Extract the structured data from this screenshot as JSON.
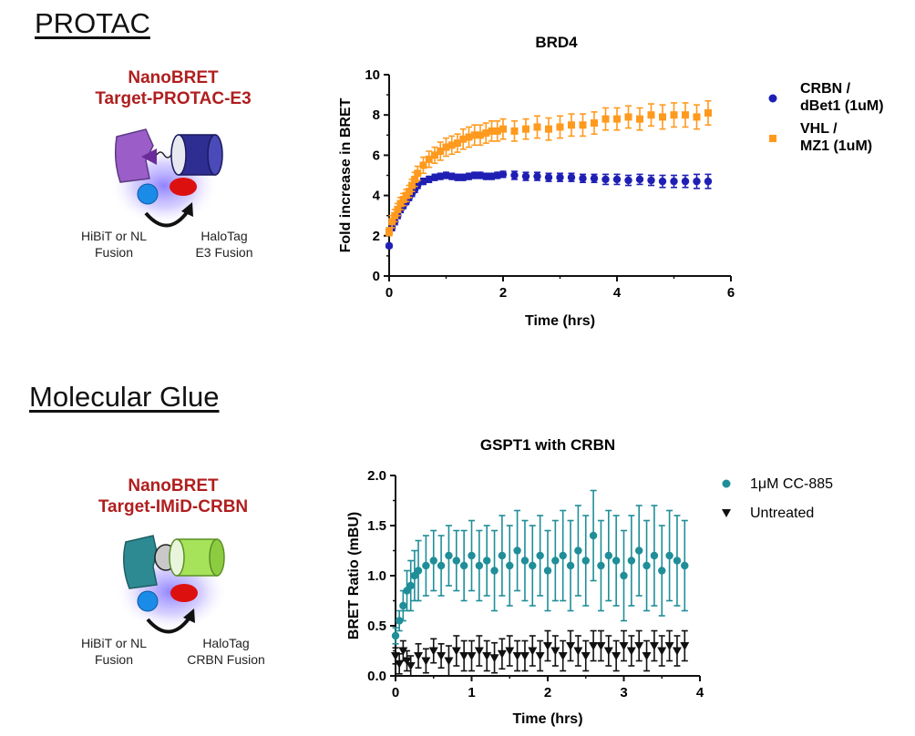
{
  "protac": {
    "section_title": "PROTAC",
    "assay_title_line1": "NanoBRET",
    "assay_title_line2": "Target-PROTAC-E3",
    "left_caption_line1": "HiBiT or NL",
    "left_caption_line2": "Fusion",
    "right_caption_line1": "HaloTag",
    "right_caption_line2": "E3 Fusion"
  },
  "glue": {
    "section_title": "Molecular Glue",
    "assay_title_line1": "NanoBRET",
    "assay_title_line2": "Target-IMiD-CRBN",
    "left_caption_line1": "HiBiT or NL",
    "left_caption_line2": "Fusion",
    "right_caption_line1": "HaloTag",
    "right_caption_line2": "CRBN Fusion"
  },
  "colors": {
    "blue": "#1f1fb4",
    "orange": "#ff9a1e",
    "teal": "#1f8e98",
    "black": "#111111",
    "title_red": "#b01e1e"
  },
  "chart_data": [
    {
      "type": "scatter",
      "title": "BRD4",
      "xlabel": "Time (hrs)",
      "ylabel": "Fold increase in BRET",
      "xlim": [
        0,
        6
      ],
      "ylim": [
        0,
        10
      ],
      "xticks": [
        "0",
        "2",
        "4",
        "6"
      ],
      "yticks": [
        "0",
        "2",
        "4",
        "6",
        "8",
        "10"
      ],
      "legend_position": "right",
      "series": [
        {
          "name": "CRBN / dBet1 (1uM)",
          "legend_line1": "CRBN /",
          "legend_line2": "dBet1 (1uM)",
          "marker": "circle",
          "color": "#1f1fb4",
          "x": [
            0,
            0.05,
            0.1,
            0.15,
            0.2,
            0.25,
            0.3,
            0.35,
            0.4,
            0.45,
            0.5,
            0.6,
            0.7,
            0.8,
            0.9,
            1.0,
            1.1,
            1.2,
            1.3,
            1.4,
            1.5,
            1.6,
            1.7,
            1.8,
            1.9,
            2.0,
            2.2,
            2.4,
            2.6,
            2.8,
            3.0,
            3.2,
            3.4,
            3.6,
            3.8,
            4.0,
            4.2,
            4.4,
            4.6,
            4.8,
            5.0,
            5.2,
            5.4,
            5.6
          ],
          "y": [
            1.5,
            2.4,
            2.7,
            3.0,
            3.3,
            3.5,
            3.7,
            3.9,
            4.1,
            4.3,
            4.5,
            4.7,
            4.8,
            4.9,
            4.95,
            5.0,
            4.95,
            4.9,
            4.9,
            4.95,
            5.0,
            5.0,
            4.95,
            4.95,
            5.0,
            5.05,
            5.0,
            4.95,
            4.95,
            4.9,
            4.9,
            4.9,
            4.85,
            4.85,
            4.8,
            4.8,
            4.75,
            4.8,
            4.75,
            4.7,
            4.7,
            4.7,
            4.7,
            4.7
          ],
          "err": [
            0.1,
            0.15,
            0.15,
            0.15,
            0.15,
            0.15,
            0.15,
            0.15,
            0.15,
            0.15,
            0.15,
            0.15,
            0.15,
            0.15,
            0.15,
            0.15,
            0.15,
            0.15,
            0.15,
            0.15,
            0.15,
            0.15,
            0.15,
            0.15,
            0.15,
            0.15,
            0.2,
            0.2,
            0.2,
            0.2,
            0.2,
            0.2,
            0.2,
            0.2,
            0.25,
            0.25,
            0.25,
            0.25,
            0.25,
            0.3,
            0.3,
            0.3,
            0.35,
            0.35
          ]
        },
        {
          "name": "VHL / MZ1 (1uM)",
          "legend_line1": "VHL /",
          "legend_line2": "MZ1 (1uM)",
          "marker": "square",
          "color": "#ff9a1e",
          "x": [
            0,
            0.05,
            0.1,
            0.15,
            0.2,
            0.25,
            0.3,
            0.35,
            0.4,
            0.45,
            0.5,
            0.6,
            0.7,
            0.8,
            0.9,
            1.0,
            1.1,
            1.2,
            1.3,
            1.4,
            1.5,
            1.6,
            1.7,
            1.8,
            1.9,
            2.0,
            2.2,
            2.4,
            2.6,
            2.8,
            3.0,
            3.2,
            3.4,
            3.6,
            3.8,
            4.0,
            4.2,
            4.4,
            4.6,
            4.8,
            5.0,
            5.2,
            5.4,
            5.6
          ],
          "y": [
            2.2,
            2.7,
            3.0,
            3.3,
            3.6,
            3.8,
            4.0,
            4.2,
            4.5,
            4.8,
            5.1,
            5.5,
            5.8,
            6.0,
            6.2,
            6.4,
            6.5,
            6.6,
            6.8,
            6.9,
            7.0,
            7.0,
            7.1,
            7.2,
            7.2,
            7.3,
            7.2,
            7.3,
            7.4,
            7.3,
            7.4,
            7.5,
            7.5,
            7.6,
            7.8,
            7.8,
            7.9,
            7.8,
            8.0,
            7.9,
            8.0,
            8.0,
            7.9,
            8.1
          ],
          "err": [
            0.2,
            0.3,
            0.3,
            0.3,
            0.3,
            0.3,
            0.3,
            0.3,
            0.3,
            0.35,
            0.35,
            0.4,
            0.4,
            0.4,
            0.45,
            0.45,
            0.45,
            0.45,
            0.5,
            0.5,
            0.5,
            0.5,
            0.5,
            0.5,
            0.5,
            0.5,
            0.5,
            0.5,
            0.55,
            0.55,
            0.55,
            0.55,
            0.55,
            0.55,
            0.55,
            0.55,
            0.55,
            0.55,
            0.55,
            0.6,
            0.6,
            0.6,
            0.6,
            0.6
          ]
        }
      ]
    },
    {
      "type": "scatter",
      "title": "GSPT1 with CRBN",
      "xlabel": "Time (hrs)",
      "ylabel": "BRET Ratio (mBU)",
      "xlim": [
        0,
        4
      ],
      "ylim": [
        0,
        2.0
      ],
      "xticks": [
        "0",
        "1",
        "2",
        "3",
        "4"
      ],
      "yticks": [
        "0.0",
        "0.5",
        "1.0",
        "1.5",
        "2.0"
      ],
      "legend_position": "right",
      "series": [
        {
          "name": "1μM  CC-885",
          "marker": "circle",
          "color": "#1f8e98",
          "x": [
            0,
            0.05,
            0.1,
            0.15,
            0.2,
            0.25,
            0.3,
            0.4,
            0.5,
            0.6,
            0.7,
            0.8,
            0.9,
            1.0,
            1.1,
            1.2,
            1.3,
            1.4,
            1.5,
            1.6,
            1.7,
            1.8,
            1.9,
            2.0,
            2.1,
            2.2,
            2.3,
            2.4,
            2.5,
            2.6,
            2.7,
            2.8,
            2.9,
            3.0,
            3.1,
            3.2,
            3.3,
            3.4,
            3.5,
            3.6,
            3.7,
            3.8
          ],
          "y": [
            0.4,
            0.55,
            0.7,
            0.85,
            0.9,
            1.0,
            1.05,
            1.1,
            1.15,
            1.1,
            1.2,
            1.15,
            1.1,
            1.2,
            1.1,
            1.15,
            1.05,
            1.2,
            1.1,
            1.25,
            1.15,
            1.1,
            1.2,
            1.05,
            1.15,
            1.2,
            1.1,
            1.25,
            1.15,
            1.4,
            1.1,
            1.2,
            1.15,
            1.0,
            1.15,
            1.25,
            1.1,
            1.2,
            1.05,
            1.2,
            1.15,
            1.1
          ],
          "err": [
            0.08,
            0.1,
            0.15,
            0.2,
            0.25,
            0.25,
            0.3,
            0.3,
            0.3,
            0.3,
            0.3,
            0.3,
            0.35,
            0.35,
            0.35,
            0.35,
            0.4,
            0.4,
            0.4,
            0.4,
            0.4,
            0.4,
            0.4,
            0.4,
            0.4,
            0.45,
            0.45,
            0.45,
            0.45,
            0.45,
            0.45,
            0.45,
            0.45,
            0.45,
            0.45,
            0.45,
            0.45,
            0.5,
            0.45,
            0.45,
            0.45,
            0.45
          ]
        },
        {
          "name": "Untreated",
          "marker": "triangle-down",
          "color": "#111111",
          "x": [
            0,
            0.05,
            0.1,
            0.15,
            0.2,
            0.3,
            0.4,
            0.5,
            0.6,
            0.7,
            0.8,
            0.9,
            1.0,
            1.1,
            1.2,
            1.3,
            1.4,
            1.5,
            1.6,
            1.7,
            1.8,
            1.9,
            2.0,
            2.1,
            2.2,
            2.3,
            2.4,
            2.5,
            2.6,
            2.7,
            2.8,
            2.9,
            3.0,
            3.1,
            3.2,
            3.3,
            3.4,
            3.5,
            3.6,
            3.7,
            3.8
          ],
          "y": [
            0.2,
            0.12,
            0.25,
            0.15,
            0.1,
            0.2,
            0.15,
            0.25,
            0.2,
            0.15,
            0.25,
            0.2,
            0.2,
            0.25,
            0.2,
            0.18,
            0.22,
            0.25,
            0.2,
            0.2,
            0.25,
            0.2,
            0.3,
            0.25,
            0.2,
            0.3,
            0.25,
            0.2,
            0.3,
            0.3,
            0.25,
            0.2,
            0.3,
            0.25,
            0.3,
            0.2,
            0.3,
            0.25,
            0.3,
            0.25,
            0.3
          ],
          "err": [
            0.08,
            0.1,
            0.1,
            0.1,
            0.1,
            0.12,
            0.12,
            0.12,
            0.12,
            0.15,
            0.15,
            0.15,
            0.15,
            0.15,
            0.15,
            0.15,
            0.15,
            0.15,
            0.15,
            0.15,
            0.15,
            0.15,
            0.15,
            0.15,
            0.15,
            0.15,
            0.15,
            0.15,
            0.15,
            0.15,
            0.15,
            0.15,
            0.15,
            0.15,
            0.15,
            0.15,
            0.15,
            0.15,
            0.15,
            0.15,
            0.15
          ]
        }
      ]
    }
  ]
}
